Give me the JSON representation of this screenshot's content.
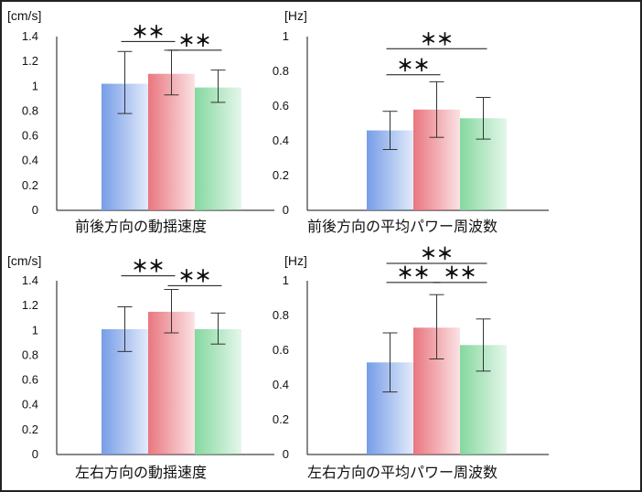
{
  "colors": {
    "blue": "#6f98e6",
    "red": "#e86f78",
    "green": "#7ed69a"
  },
  "chart_data": [
    {
      "type": "bar",
      "title": "",
      "unit_label": "[cm/s]",
      "xlabel": "前後方向の動揺速度",
      "yticks": [
        "0",
        "0.2",
        "0.4",
        "0.6",
        "0.8",
        "1",
        "1.2",
        "1.4"
      ],
      "ylim": [
        0,
        1.4
      ],
      "series": [
        {
          "color": "blue",
          "value": 1.02,
          "err_low": 0.78,
          "err_high": 1.28
        },
        {
          "color": "red",
          "value": 1.1,
          "err_low": 0.93,
          "err_high": 1.29
        },
        {
          "color": "green",
          "value": 0.99,
          "err_low": 0.87,
          "err_high": 1.13
        }
      ],
      "significance": [
        {
          "label": "＊＊",
          "from": 0,
          "to": 1,
          "level": 1.36
        },
        {
          "label": "＊＊",
          "from": 1,
          "to": 2,
          "level": 1.29
        }
      ]
    },
    {
      "type": "bar",
      "title": "",
      "unit_label": "[Hz]",
      "xlabel": "前後方向の平均パワー周波数",
      "yticks": [
        "0",
        "0.2",
        "0.4",
        "0.6",
        "0.8",
        "1"
      ],
      "ylim": [
        0,
        1
      ],
      "series": [
        {
          "color": "blue",
          "value": 0.46,
          "err_low": 0.35,
          "err_high": 0.57
        },
        {
          "color": "red",
          "value": 0.58,
          "err_low": 0.42,
          "err_high": 0.74
        },
        {
          "color": "green",
          "value": 0.53,
          "err_low": 0.41,
          "err_high": 0.65
        }
      ],
      "significance": [
        {
          "label": "＊＊",
          "from": 0,
          "to": 2,
          "level": 0.93
        },
        {
          "label": "＊＊",
          "from": 0,
          "to": 1,
          "level": 0.78
        }
      ]
    },
    {
      "type": "bar",
      "title": "",
      "unit_label": "[cm/s]",
      "xlabel": "左右方向の動揺速度",
      "yticks": [
        "0",
        "0.2",
        "0.4",
        "0.6",
        "0.8",
        "1",
        "1.2",
        "1.4"
      ],
      "ylim": [
        0,
        1.4
      ],
      "series": [
        {
          "color": "blue",
          "value": 1.01,
          "err_low": 0.83,
          "err_high": 1.19
        },
        {
          "color": "red",
          "value": 1.15,
          "err_low": 0.98,
          "err_high": 1.33
        },
        {
          "color": "green",
          "value": 1.01,
          "err_low": 0.89,
          "err_high": 1.14
        }
      ],
      "significance": [
        {
          "label": "＊＊",
          "from": 0,
          "to": 1,
          "level": 1.44
        },
        {
          "label": "＊＊",
          "from": 1,
          "to": 2,
          "level": 1.36
        }
      ]
    },
    {
      "type": "bar",
      "title": "",
      "unit_label": "[Hz]",
      "xlabel": "左右方向の平均パワー周波数",
      "yticks": [
        "0",
        "0.2",
        "0.4",
        "0.6",
        "0.8",
        "1"
      ],
      "ylim": [
        0,
        1
      ],
      "series": [
        {
          "color": "blue",
          "value": 0.53,
          "err_low": 0.36,
          "err_high": 0.7
        },
        {
          "color": "red",
          "value": 0.73,
          "err_low": 0.55,
          "err_high": 0.92
        },
        {
          "color": "green",
          "value": 0.63,
          "err_low": 0.48,
          "err_high": 0.78
        }
      ],
      "significance": [
        {
          "label": "＊＊",
          "from": 0,
          "to": 2,
          "level": 1.1
        },
        {
          "label": "＊＊",
          "from": 0,
          "to": 1,
          "level": 0.99
        },
        {
          "label": "＊＊",
          "from": 1,
          "to": 2,
          "level": 0.99
        }
      ]
    }
  ]
}
